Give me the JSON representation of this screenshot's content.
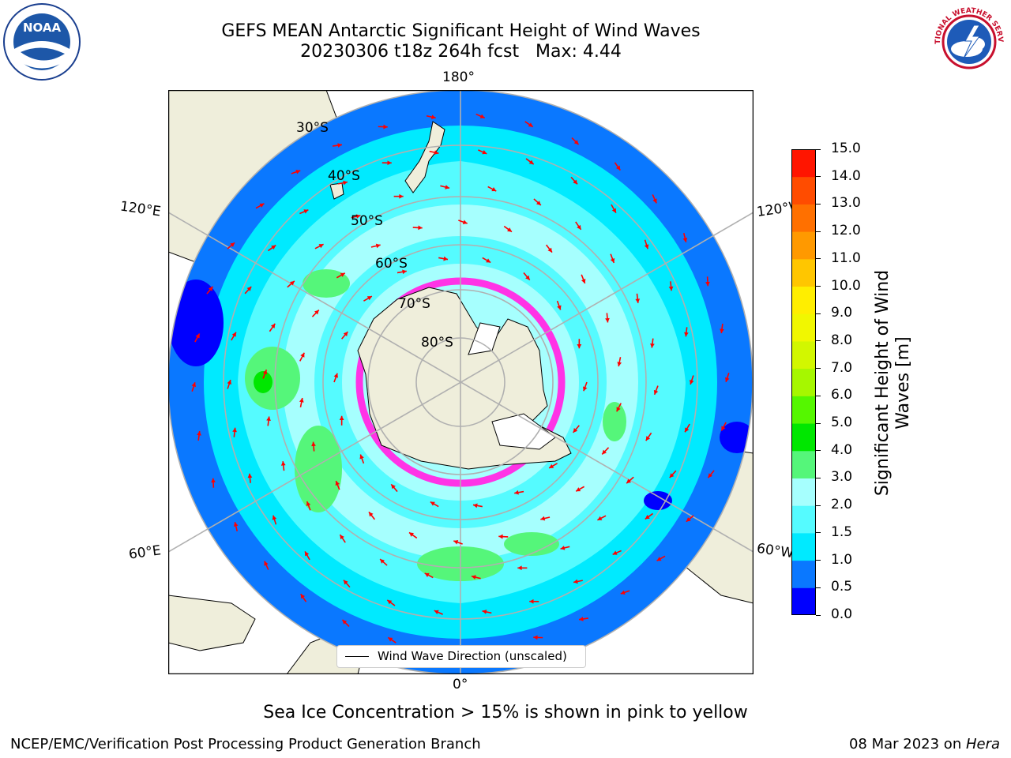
{
  "header": {
    "title_line1": "GEFS MEAN Antarctic Significant Height of Wind Waves",
    "title_line2": "20230306 t18z 264h fcst   Max: 4.44"
  },
  "logos": {
    "noaa_text": "NOAA",
    "nws_text": "NATIONAL WEATHER SERVICE"
  },
  "map": {
    "projection": "south-polar-stereographic",
    "lon_labels": {
      "top": "180°",
      "left": "120°E",
      "right": "120°W",
      "lower_left": "60°E",
      "lower_right": "60°W",
      "bottom": "0°"
    },
    "lat_labels": [
      "30°S",
      "40°S",
      "50°S",
      "60°S",
      "70°S",
      "80°S"
    ],
    "arrow_color": "#ff0000"
  },
  "legend": {
    "label": "Wind Wave Direction (unscaled)"
  },
  "colorbar": {
    "label_line1": "Significant Height of Wind",
    "label_line2": "Waves [m]",
    "ticks": [
      "0.0",
      "0.5",
      "1.0",
      "1.5",
      "2.0",
      "3.0",
      "4.0",
      "5.0",
      "6.0",
      "7.0",
      "8.0",
      "9.0",
      "10.0",
      "11.0",
      "12.0",
      "13.0",
      "14.0",
      "15.0"
    ],
    "colors": [
      "#0000ff",
      "#0a78ff",
      "#00eaff",
      "#55fbff",
      "#a6fffe",
      "#55f67a",
      "#00e700",
      "#55f700",
      "#a6f700",
      "#d2f700",
      "#f1f700",
      "#ffee00",
      "#ffc600",
      "#ff9900",
      "#ff7000",
      "#ff4c00",
      "#ff1500"
    ]
  },
  "notes": {
    "sea_ice": "Sea Ice Concentration > 15% is shown in pink to yellow"
  },
  "footer": {
    "left": "NCEP/EMC/Verification Post Processing Product Generation Branch",
    "right_prefix": "08 Mar 2023 on ",
    "right_host": "Hera"
  }
}
